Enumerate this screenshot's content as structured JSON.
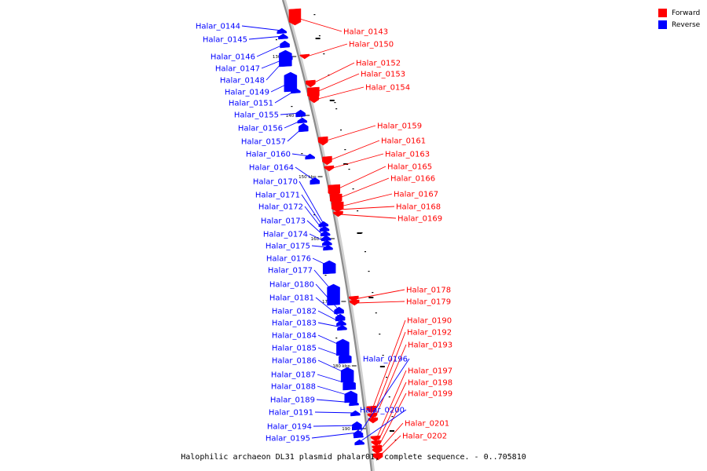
{
  "caption": "Halophilic archaeon DL31 plasmid phalar01, complete sequence. - 0..705810",
  "legend": [
    {
      "label": "Forward",
      "color": "#ff0000"
    },
    {
      "label": "Reverse",
      "color": "#0000ff"
    }
  ],
  "colors": {
    "forward": "#ff0000",
    "reverse": "#0000ff",
    "backbone": "#8c8c8c"
  },
  "scale_ticks": [
    "130 kbp",
    "140 kbp",
    "150 kbp",
    "160 kbp",
    "170 kbp",
    "180 kbp",
    "190 kbp"
  ],
  "genes": [
    {
      "name": "Halar_0143",
      "strand": "forward"
    },
    {
      "name": "Halar_0144",
      "strand": "reverse"
    },
    {
      "name": "Halar_0145",
      "strand": "reverse"
    },
    {
      "name": "Halar_0146",
      "strand": "reverse"
    },
    {
      "name": "Halar_0147",
      "strand": "reverse"
    },
    {
      "name": "Halar_0148",
      "strand": "reverse"
    },
    {
      "name": "Halar_0149",
      "strand": "reverse"
    },
    {
      "name": "Halar_0150",
      "strand": "forward"
    },
    {
      "name": "Halar_0151",
      "strand": "reverse"
    },
    {
      "name": "Halar_0152",
      "strand": "forward"
    },
    {
      "name": "Halar_0153",
      "strand": "forward"
    },
    {
      "name": "Halar_0154",
      "strand": "forward"
    },
    {
      "name": "Halar_0155",
      "strand": "reverse"
    },
    {
      "name": "Halar_0156",
      "strand": "reverse"
    },
    {
      "name": "Halar_0157",
      "strand": "reverse"
    },
    {
      "name": "Halar_0159",
      "strand": "forward"
    },
    {
      "name": "Halar_0160",
      "strand": "reverse"
    },
    {
      "name": "Halar_0161",
      "strand": "forward"
    },
    {
      "name": "Halar_0163",
      "strand": "forward"
    },
    {
      "name": "Halar_0164",
      "strand": "reverse"
    },
    {
      "name": "Halar_0165",
      "strand": "forward"
    },
    {
      "name": "Halar_0166",
      "strand": "forward"
    },
    {
      "name": "Halar_0167",
      "strand": "forward"
    },
    {
      "name": "Halar_0168",
      "strand": "forward"
    },
    {
      "name": "Halar_0169",
      "strand": "forward"
    },
    {
      "name": "Halar_0170",
      "strand": "reverse"
    },
    {
      "name": "Halar_0171",
      "strand": "reverse"
    },
    {
      "name": "Halar_0172",
      "strand": "reverse"
    },
    {
      "name": "Halar_0173",
      "strand": "reverse"
    },
    {
      "name": "Halar_0174",
      "strand": "reverse"
    },
    {
      "name": "Halar_0175",
      "strand": "reverse"
    },
    {
      "name": "Halar_0176",
      "strand": "reverse"
    },
    {
      "name": "Halar_0177",
      "strand": "reverse"
    },
    {
      "name": "Halar_0178",
      "strand": "forward"
    },
    {
      "name": "Halar_0179",
      "strand": "forward"
    },
    {
      "name": "Halar_0180",
      "strand": "reverse"
    },
    {
      "name": "Halar_0181",
      "strand": "reverse"
    },
    {
      "name": "Halar_0182",
      "strand": "reverse"
    },
    {
      "name": "Halar_0183",
      "strand": "reverse"
    },
    {
      "name": "Halar_0184",
      "strand": "reverse"
    },
    {
      "name": "Halar_0185",
      "strand": "reverse"
    },
    {
      "name": "Halar_0186",
      "strand": "reverse"
    },
    {
      "name": "Halar_0187",
      "strand": "reverse"
    },
    {
      "name": "Halar_0188",
      "strand": "reverse"
    },
    {
      "name": "Halar_0189",
      "strand": "reverse"
    },
    {
      "name": "Halar_0190",
      "strand": "forward"
    },
    {
      "name": "Halar_0191",
      "strand": "reverse"
    },
    {
      "name": "Halar_0192",
      "strand": "forward"
    },
    {
      "name": "Halar_0193",
      "strand": "forward"
    },
    {
      "name": "Halar_0194",
      "strand": "reverse"
    },
    {
      "name": "Halar_0195",
      "strand": "reverse"
    },
    {
      "name": "Halar_0196",
      "strand": "reverse"
    },
    {
      "name": "Halar_0197",
      "strand": "forward"
    },
    {
      "name": "Halar_0198",
      "strand": "forward"
    },
    {
      "name": "Halar_0199",
      "strand": "forward"
    },
    {
      "name": "Halar_0200",
      "strand": "reverse"
    },
    {
      "name": "Halar_0201",
      "strand": "forward"
    },
    {
      "name": "Halar_0202",
      "strand": "forward"
    }
  ]
}
